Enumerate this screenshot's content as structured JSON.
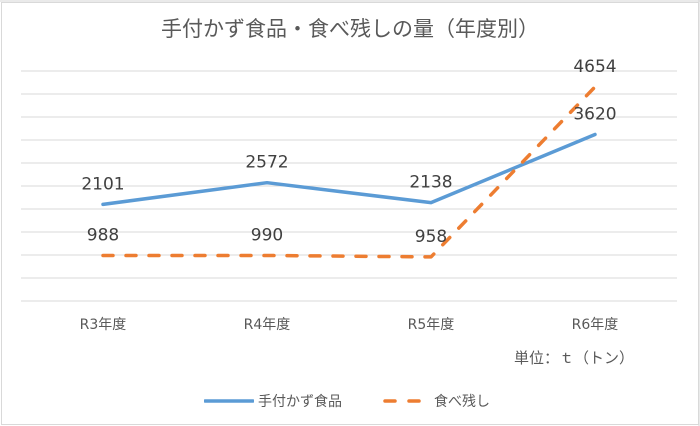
{
  "chart_data": {
    "type": "line",
    "title": "手付かず食品・食べ残しの量（年度別）",
    "categories": [
      "R3年度",
      "R4年度",
      "R5年度",
      "R6年度"
    ],
    "series": [
      {
        "name": "手付かず食品",
        "values": [
          2101,
          2572,
          2138,
          3620
        ],
        "color": "#5b9bd5",
        "style": "solid"
      },
      {
        "name": "食べ残し",
        "values": [
          988,
          990,
          958,
          4654
        ],
        "color": "#ed7d31",
        "style": "dashed"
      }
    ],
    "xlabel": "",
    "ylabel": "",
    "ylim": [
      0,
      5000
    ],
    "ytick_step": 500,
    "y_axis_labels_visible": false,
    "grid": true,
    "legend_position": "bottom",
    "annotation": "単位：ｔ（トン）"
  },
  "title": "手付かず食品・食べ残しの量（年度別）",
  "unit_note": "単位：ｔ（トン）",
  "legend": [
    {
      "label": "手付かず食品",
      "color": "#5b9bd5",
      "style": "solid"
    },
    {
      "label": "食べ残し",
      "color": "#ed7d31",
      "style": "dashed"
    }
  ],
  "colors": {
    "series1": "#5b9bd5",
    "series2": "#ed7d31",
    "gridline": "#d9d9d9",
    "text": "#595959"
  }
}
